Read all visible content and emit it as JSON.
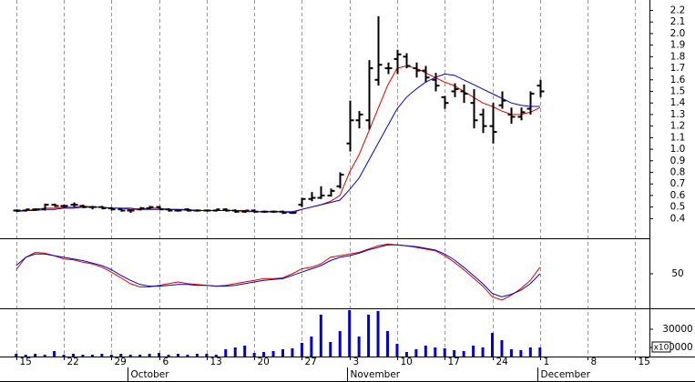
{
  "chart_data": {
    "type": "ohlc",
    "x": [
      0,
      1,
      2,
      3,
      4,
      5,
      6,
      7,
      8,
      9,
      10,
      11,
      12,
      13,
      14,
      15,
      16,
      17,
      18,
      19,
      20,
      21,
      22,
      23,
      24,
      25,
      26,
      27,
      28,
      29,
      30,
      31,
      32,
      33,
      34,
      35,
      36,
      37,
      38,
      39,
      40,
      41,
      42,
      43,
      44,
      45,
      46,
      47,
      48,
      49,
      50,
      51,
      52,
      53,
      54,
      55
    ],
    "open": [
      0.47,
      0.47,
      0.48,
      0.48,
      0.52,
      0.51,
      0.52,
      0.51,
      0.5,
      0.5,
      0.49,
      0.48,
      0.47,
      0.48,
      0.49,
      0.5,
      0.48,
      0.47,
      0.48,
      0.47,
      0.47,
      0.47,
      0.48,
      0.47,
      0.46,
      0.47,
      0.46,
      0.46,
      0.46,
      0.45,
      0.52,
      0.57,
      0.58,
      0.6,
      0.68,
      1.05,
      1.25,
      1.25,
      1.6,
      1.7,
      1.78,
      1.8,
      1.7,
      1.68,
      1.6,
      1.45,
      1.5,
      1.5,
      1.4,
      1.3,
      1.2,
      1.38,
      1.3,
      1.28,
      1.35,
      1.55
    ],
    "high": [
      0.48,
      0.48,
      0.49,
      0.53,
      0.53,
      0.52,
      0.54,
      0.52,
      0.51,
      0.51,
      0.5,
      0.49,
      0.48,
      0.5,
      0.51,
      0.51,
      0.49,
      0.48,
      0.49,
      0.48,
      0.48,
      0.48,
      0.49,
      0.48,
      0.47,
      0.48,
      0.47,
      0.47,
      0.47,
      0.46,
      0.58,
      0.63,
      0.68,
      0.66,
      0.8,
      1.42,
      1.33,
      1.77,
      2.15,
      1.75,
      1.86,
      1.83,
      1.75,
      1.72,
      1.66,
      1.46,
      1.57,
      1.56,
      1.52,
      1.35,
      1.4,
      1.5,
      1.36,
      1.36,
      1.5,
      1.6
    ],
    "low": [
      0.46,
      0.46,
      0.47,
      0.47,
      0.5,
      0.49,
      0.5,
      0.49,
      0.48,
      0.48,
      0.47,
      0.46,
      0.45,
      0.47,
      0.48,
      0.48,
      0.46,
      0.46,
      0.46,
      0.46,
      0.46,
      0.46,
      0.46,
      0.45,
      0.45,
      0.45,
      0.45,
      0.45,
      0.44,
      0.44,
      0.5,
      0.55,
      0.57,
      0.59,
      0.66,
      0.98,
      1.18,
      1.17,
      1.55,
      1.65,
      1.65,
      1.7,
      1.62,
      1.58,
      1.5,
      1.35,
      1.45,
      1.4,
      1.18,
      1.14,
      1.05,
      1.35,
      1.22,
      1.25,
      1.3,
      1.45
    ],
    "close": [
      0.47,
      0.48,
      0.48,
      0.52,
      0.51,
      0.51,
      0.52,
      0.5,
      0.5,
      0.49,
      0.48,
      0.47,
      0.47,
      0.49,
      0.5,
      0.48,
      0.47,
      0.47,
      0.47,
      0.47,
      0.47,
      0.48,
      0.47,
      0.46,
      0.47,
      0.46,
      0.46,
      0.46,
      0.45,
      0.45,
      0.57,
      0.58,
      0.6,
      0.64,
      0.78,
      1.25,
      1.3,
      1.7,
      1.73,
      1.7,
      1.82,
      1.72,
      1.68,
      1.62,
      1.55,
      1.4,
      1.52,
      1.48,
      1.25,
      1.2,
      1.15,
      1.42,
      1.28,
      1.32,
      1.48,
      1.5
    ],
    "bar_color": "#000000",
    "series": [
      {
        "color": "#e00000",
        "values": [
          0.47,
          0.47,
          0.48,
          0.49,
          0.49,
          0.5,
          0.5,
          0.51,
          0.5,
          0.5,
          0.49,
          0.49,
          0.48,
          0.48,
          0.49,
          0.49,
          0.48,
          0.48,
          0.47,
          0.47,
          0.47,
          0.47,
          0.47,
          0.47,
          0.46,
          0.46,
          0.46,
          0.46,
          0.46,
          0.45,
          0.48,
          0.5,
          0.52,
          0.55,
          0.6,
          0.8,
          0.95,
          1.15,
          1.35,
          1.55,
          1.7,
          1.72,
          1.7,
          1.66,
          1.62,
          1.58,
          1.55,
          1.5,
          1.45,
          1.4,
          1.37,
          1.33,
          1.3,
          1.3,
          1.32,
          1.36
        ]
      },
      {
        "color": "#0000cc",
        "values": [
          0.46,
          0.47,
          0.47,
          0.48,
          0.48,
          0.49,
          0.49,
          0.5,
          0.5,
          0.5,
          0.49,
          0.49,
          0.49,
          0.48,
          0.48,
          0.48,
          0.48,
          0.48,
          0.48,
          0.47,
          0.47,
          0.47,
          0.47,
          0.47,
          0.47,
          0.46,
          0.46,
          0.46,
          0.46,
          0.46,
          0.48,
          0.5,
          0.52,
          0.54,
          0.56,
          0.65,
          0.75,
          0.9,
          1.05,
          1.2,
          1.35,
          1.45,
          1.52,
          1.58,
          1.62,
          1.65,
          1.64,
          1.6,
          1.56,
          1.52,
          1.48,
          1.44,
          1.4,
          1.38,
          1.37,
          1.37
        ]
      }
    ],
    "xlim": [
      -1.7,
      66.5
    ],
    "ylim": [
      0.23,
      2.29
    ],
    "yticks": [
      0.4,
      0.5,
      0.6,
      0.7,
      0.8,
      0.9,
      {
        "value": 1.0,
        "label": "1.0"
      },
      1.1,
      1.2,
      1.3,
      1.4,
      1.5,
      1.6,
      1.7,
      1.8,
      1.9,
      {
        "value": 2.0,
        "label": "2.0"
      },
      2.1,
      2.2
    ],
    "xticks": [
      {
        "value": 0,
        "label": "15"
      },
      {
        "value": 5,
        "label": "22"
      },
      {
        "value": 10,
        "label": "29"
      },
      {
        "value": 15,
        "label": "6"
      },
      {
        "value": 20,
        "label": "13"
      },
      {
        "value": 25,
        "label": "20"
      },
      {
        "value": 30,
        "label": "27"
      },
      {
        "value": 35,
        "label": "3"
      },
      {
        "value": 40,
        "label": "10"
      },
      {
        "value": 45,
        "label": "17"
      },
      {
        "value": 50,
        "label": "24"
      },
      {
        "value": 55,
        "label": "1"
      },
      {
        "value": 60,
        "label": "8"
      },
      {
        "value": 65,
        "label": "15"
      }
    ],
    "month_ticks": [
      {
        "value": 12,
        "label": "October"
      },
      {
        "value": 35,
        "label": "November"
      },
      {
        "value": 55,
        "label": "December"
      }
    ],
    "grid": true,
    "oscillator": {
      "ylim": [
        8,
        92
      ],
      "yticks": [
        50
      ],
      "series": [
        {
          "color": "#e00000",
          "values": [
            55,
            70,
            76,
            75,
            72,
            68,
            67,
            64,
            62,
            58,
            52,
            45,
            38,
            34,
            34,
            36,
            38,
            40,
            38,
            37,
            36,
            35,
            36,
            38,
            40,
            42,
            44,
            44,
            45,
            50,
            56,
            58,
            62,
            70,
            72,
            74,
            76,
            80,
            84,
            86,
            85,
            84,
            82,
            80,
            78,
            72,
            64,
            55,
            45,
            35,
            22,
            18,
            24,
            32,
            42,
            58
          ]
        },
        {
          "color": "#0000cc",
          "values": [
            60,
            70,
            74,
            74,
            72,
            70,
            68,
            66,
            63,
            60,
            55,
            48,
            42,
            37,
            35,
            35,
            36,
            37,
            37,
            36,
            36,
            35,
            35,
            36,
            38,
            40,
            42,
            43,
            44,
            48,
            52,
            56,
            60,
            66,
            70,
            72,
            75,
            79,
            82,
            85,
            85,
            84,
            83,
            81,
            79,
            74,
            67,
            58,
            48,
            38,
            26,
            22,
            25,
            30,
            38,
            50
          ]
        }
      ]
    },
    "volume": {
      "color": "#0000cc",
      "ylim": [
        0,
        52000
      ],
      "yticks": [
        10000,
        30000
      ],
      "multiplier_label": "x10",
      "values": [
        3000,
        2000,
        3000,
        2000,
        6000,
        2000,
        3000,
        2000,
        2000,
        3000,
        2000,
        3000,
        2000,
        2000,
        3000,
        4000,
        2000,
        3000,
        2000,
        3000,
        3000,
        2000,
        8000,
        10000,
        12000,
        4000,
        5000,
        6000,
        8000,
        9000,
        15000,
        22000,
        46000,
        16000,
        28000,
        51000,
        22000,
        46000,
        50000,
        28000,
        14000,
        5000,
        8000,
        12000,
        10000,
        9000,
        7000,
        6000,
        12000,
        10000,
        26000,
        18000,
        8000,
        7000,
        10000,
        10000
      ]
    }
  }
}
